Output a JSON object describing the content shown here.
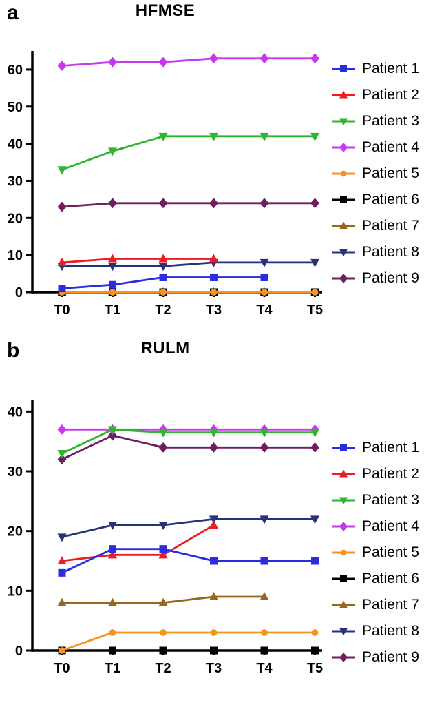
{
  "chart_data": [
    {
      "type": "line",
      "panel_label": "a",
      "title": "HFMSE",
      "categories": [
        "T0",
        "T1",
        "T2",
        "T3",
        "T4",
        "T5"
      ],
      "xlabel": "",
      "ylabel": "",
      "ylim": [
        0,
        65
      ],
      "yticks": [
        0,
        10,
        20,
        30,
        40,
        50,
        60
      ],
      "grid": false,
      "legend_position": "right",
      "series": [
        {
          "name": "Patient 1",
          "color": "#2b2be0",
          "marker": "square",
          "values": [
            1,
            2,
            4,
            4,
            4,
            null
          ]
        },
        {
          "name": "Patient 2",
          "color": "#ec1c24",
          "marker": "triangle-up",
          "values": [
            8,
            9,
            9,
            9,
            null,
            null
          ]
        },
        {
          "name": "Patient 3",
          "color": "#2db52d",
          "marker": "triangle-down",
          "values": [
            33,
            38,
            42,
            42,
            42,
            42
          ]
        },
        {
          "name": "Patient 4",
          "color": "#c837f0",
          "marker": "diamond",
          "values": [
            61,
            62,
            62,
            63,
            63,
            63
          ]
        },
        {
          "name": "Patient 5",
          "color": "#f5941e",
          "marker": "circle",
          "values": [
            0,
            0,
            0,
            0,
            0,
            0
          ]
        },
        {
          "name": "Patient 6",
          "color": "#000000",
          "marker": "square",
          "values": [
            0,
            0,
            0,
            0,
            0,
            0
          ]
        },
        {
          "name": "Patient 7",
          "color": "#96681b",
          "marker": "triangle-up",
          "values": [
            0,
            0,
            0,
            0,
            0,
            0
          ]
        },
        {
          "name": "Patient 8",
          "color": "#293179",
          "marker": "triangle-down",
          "values": [
            7,
            7,
            7,
            8,
            8,
            8
          ]
        },
        {
          "name": "Patient 9",
          "color": "#6e1f60",
          "marker": "diamond",
          "values": [
            23,
            24,
            24,
            24,
            24,
            24
          ]
        }
      ]
    },
    {
      "type": "line",
      "panel_label": "b",
      "title": "RULM",
      "categories": [
        "T0",
        "T1",
        "T2",
        "T3",
        "T4",
        "T5"
      ],
      "xlabel": "",
      "ylabel": "",
      "ylim": [
        0,
        42
      ],
      "yticks": [
        0,
        10,
        20,
        30,
        40
      ],
      "grid": false,
      "legend_position": "right",
      "series": [
        {
          "name": "Patient 1",
          "color": "#2b2be0",
          "marker": "square",
          "values": [
            13,
            17,
            17,
            15,
            15,
            15
          ]
        },
        {
          "name": "Patient 2",
          "color": "#ec1c24",
          "marker": "triangle-up",
          "values": [
            15,
            16,
            16,
            21,
            null,
            null
          ]
        },
        {
          "name": "Patient 3",
          "color": "#2db52d",
          "marker": "triangle-down",
          "values": [
            33,
            37,
            36.5,
            36.5,
            36.5,
            36.5
          ]
        },
        {
          "name": "Patient 4",
          "color": "#c837f0",
          "marker": "diamond",
          "values": [
            37,
            37,
            37,
            37,
            37,
            37
          ]
        },
        {
          "name": "Patient 5",
          "color": "#f5941e",
          "marker": "circle",
          "values": [
            0,
            3,
            3,
            3,
            3,
            3
          ]
        },
        {
          "name": "Patient 6",
          "color": "#000000",
          "marker": "square",
          "values": [
            0,
            0,
            0,
            0,
            0,
            0
          ]
        },
        {
          "name": "Patient 7",
          "color": "#96681b",
          "marker": "triangle-up",
          "values": [
            8,
            8,
            8,
            9,
            9,
            null
          ]
        },
        {
          "name": "Patient 8",
          "color": "#293179",
          "marker": "triangle-down",
          "values": [
            19,
            21,
            21,
            22,
            22,
            22
          ]
        },
        {
          "name": "Patient 9",
          "color": "#6e1f60",
          "marker": "diamond",
          "values": [
            32,
            36,
            34,
            34,
            34,
            34
          ]
        }
      ]
    }
  ]
}
